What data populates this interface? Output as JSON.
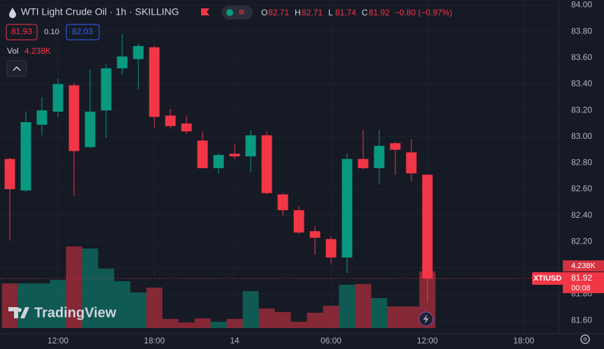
{
  "header": {
    "title": "WTI Light Crude Oil · 1h · SKILLING",
    "ohlc_keys": [
      "O",
      "H",
      "L",
      "C"
    ],
    "change": "−0.80 (−0.97%)",
    "sell": "81.93",
    "spread": "0.10",
    "buy": "82.03",
    "volume_key": "Vol",
    "volume_value": "4.238K"
  },
  "chart_data": {
    "type": "candlestick",
    "symbol": "XTIUSD",
    "countdown": "00:08",
    "open": [
      82.83,
      82.59,
      83.09,
      83.19,
      83.39,
      82.92,
      83.2,
      83.52,
      83.59,
      83.68,
      83.16,
      83.1,
      82.97,
      82.76,
      82.87,
      82.85,
      83.01,
      82.56,
      82.44,
      82.28,
      82.22,
      82.08,
      82.83,
      82.76,
      82.95,
      82.88,
      82.71
    ],
    "high": [
      82.84,
      83.19,
      83.3,
      83.44,
      83.41,
      83.51,
      83.55,
      83.78,
      83.71,
      83.69,
      83.21,
      83.16,
      83.04,
      82.87,
      82.94,
      83.05,
      83.04,
      82.57,
      82.47,
      82.32,
      82.24,
      82.87,
      83.05,
      83.05,
      82.96,
      82.98,
      82.71
    ],
    "low": [
      82.21,
      82.58,
      83.01,
      83.15,
      82.55,
      82.91,
      82.99,
      83.47,
      83.36,
      83.07,
      83.06,
      83.02,
      82.76,
      82.72,
      82.83,
      82.73,
      82.56,
      82.4,
      82.26,
      82.1,
      82.03,
      81.96,
      82.75,
      82.64,
      82.71,
      82.66,
      81.74
    ],
    "close": [
      82.6,
      83.11,
      83.2,
      83.4,
      82.89,
      83.19,
      83.52,
      83.61,
      83.69,
      83.15,
      83.08,
      83.04,
      82.76,
      82.86,
      82.85,
      83.01,
      82.57,
      82.44,
      82.27,
      82.23,
      82.08,
      82.83,
      82.76,
      82.93,
      82.9,
      82.72,
      81.92
    ],
    "volume": [
      3350,
      3350,
      3350,
      3610,
      6120,
      5960,
      4450,
      3510,
      2670,
      3030,
      680,
      420,
      730,
      470,
      680,
      2770,
      1460,
      1200,
      470,
      1150,
      1670,
      3240,
      3300,
      2250,
      1620,
      1620,
      4238
    ],
    "up_color": "#089981",
    "down_color": "#f23645",
    "ylim": [
      81.5,
      84.04
    ],
    "yticks": [
      {
        "value": 81.6,
        "label": "81.60"
      },
      {
        "value": 81.8,
        "label": "81.80"
      },
      {
        "value": 82.0,
        "label": "82.00"
      },
      {
        "value": 82.2,
        "label": "82.20"
      },
      {
        "value": 82.4,
        "label": "82.40"
      },
      {
        "value": 82.6,
        "label": "82.60"
      },
      {
        "value": 82.8,
        "label": "82.80"
      },
      {
        "value": 83.0,
        "label": "83.00"
      },
      {
        "value": 83.2,
        "label": "83.20"
      },
      {
        "value": 83.4,
        "label": "83.40"
      },
      {
        "value": 83.6,
        "label": "83.60"
      },
      {
        "value": 83.8,
        "label": "83.80"
      },
      {
        "value": 84.0,
        "label": "84.00"
      }
    ],
    "xlim": [
      -0.61,
      34.17
    ],
    "xticks": [
      {
        "value": 3,
        "label": "12:00"
      },
      {
        "value": 9,
        "label": "18:00"
      },
      {
        "value": 14,
        "label": "14"
      },
      {
        "value": 20,
        "label": "06:00"
      },
      {
        "value": 26,
        "label": "12:00"
      },
      {
        "value": 32,
        "label": "18:00"
      }
    ],
    "grid": true
  },
  "watermark": "TradingView"
}
